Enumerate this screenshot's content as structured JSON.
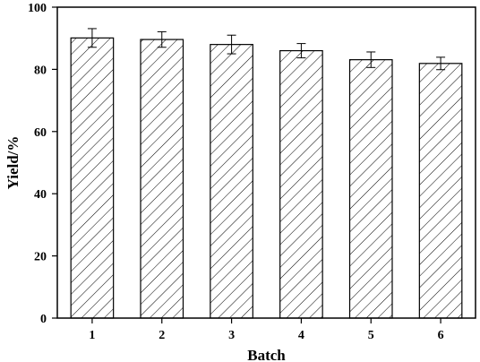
{
  "chart_data": {
    "type": "bar",
    "title": "",
    "xlabel": "Batch",
    "ylabel": "Yield/%",
    "categories": [
      "1",
      "2",
      "3",
      "4",
      "5",
      "6"
    ],
    "values": [
      90.1,
      89.6,
      88.0,
      86.0,
      83.1,
      81.9
    ],
    "errors": [
      3.0,
      2.5,
      3.0,
      2.3,
      2.5,
      2.0
    ],
    "ylim": [
      0,
      100
    ],
    "yticks": [
      0,
      20,
      40,
      60,
      80,
      100
    ],
    "grid": false,
    "legend": "none",
    "bar_fill": "diagonal-hatch",
    "colors": {
      "bar_edge": "#000000",
      "hatch": "#000000",
      "background": "#ffffff"
    }
  }
}
